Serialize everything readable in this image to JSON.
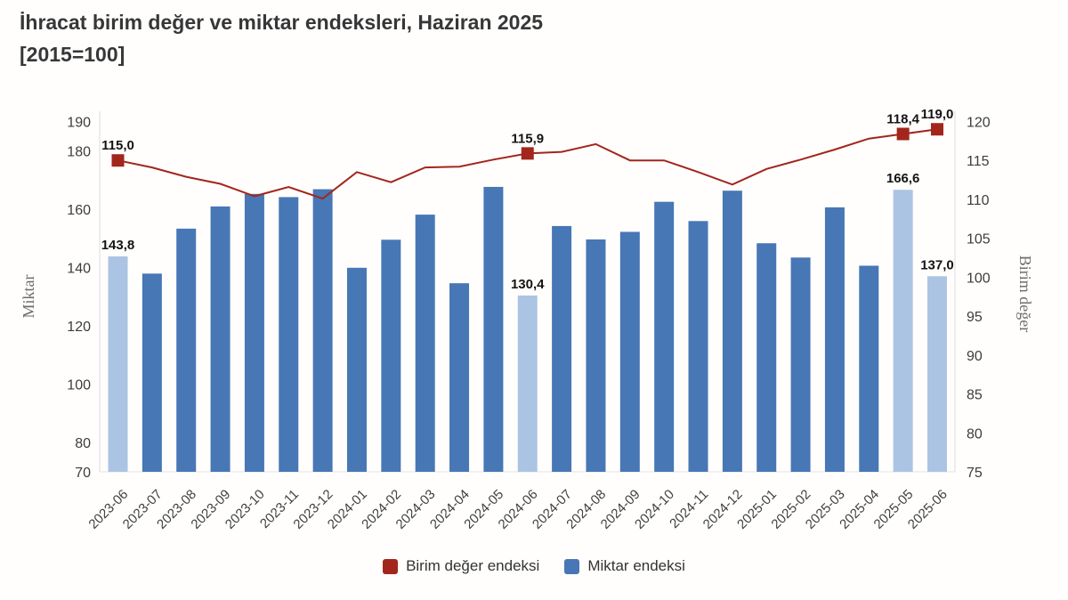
{
  "title": {
    "line1": "İhracat birim değer ve miktar endeksleri, Haziran 2025",
    "line2": "[2015=100]"
  },
  "chart_data": {
    "type": "bar",
    "subtype": "bar+line dual axis",
    "categories": [
      "2023-06",
      "2023-07",
      "2023-08",
      "2023-09",
      "2023-10",
      "2023-11",
      "2023-12",
      "2024-01",
      "2024-02",
      "2024-03",
      "2024-04",
      "2024-05",
      "2024-06",
      "2024-07",
      "2024-08",
      "2024-09",
      "2024-10",
      "2024-11",
      "2024-12",
      "2025-01",
      "2025-02",
      "2025-03",
      "2025-04",
      "2025-05",
      "2025-06"
    ],
    "series": [
      {
        "name": "Birim değer endeksi",
        "type": "line",
        "axis": "right",
        "color": "#a2261c",
        "values": [
          115.0,
          114.1,
          112.9,
          112.0,
          110.4,
          111.6,
          110.1,
          113.5,
          112.2,
          114.1,
          114.2,
          115.1,
          115.9,
          116.1,
          117.1,
          115.0,
          115.0,
          113.5,
          111.9,
          113.9,
          115.1,
          116.4,
          117.8,
          118.4,
          119.0
        ],
        "point_labels": [
          {
            "index": 0,
            "text": "115,0"
          },
          {
            "index": 12,
            "text": "115,9"
          },
          {
            "index": 23,
            "text": "118,4"
          },
          {
            "index": 24,
            "text": "119,0"
          }
        ]
      },
      {
        "name": "Miktar endeksi",
        "type": "bar",
        "axis": "left",
        "color": "#4777b5",
        "highlight_color": "#acc4e3",
        "highlight_indices": [
          0,
          12,
          23,
          24
        ],
        "values": [
          143.8,
          137.9,
          153.3,
          160.9,
          165.2,
          164.1,
          166.8,
          139.9,
          149.5,
          158.1,
          134.6,
          167.6,
          130.4,
          154.2,
          149.6,
          152.2,
          162.5,
          155.9,
          166.3,
          148.3,
          143.4,
          160.6,
          140.6,
          166.6,
          137.0
        ],
        "point_labels": [
          {
            "index": 0,
            "text": "143,8"
          },
          {
            "index": 12,
            "text": "130,4"
          },
          {
            "index": 23,
            "text": "166,6"
          },
          {
            "index": 24,
            "text": "137,0"
          }
        ]
      }
    ],
    "left_axis": {
      "title": "Miktar",
      "min": 70,
      "max": 190,
      "ticks": [
        190,
        180,
        160,
        140,
        120,
        100,
        80,
        70
      ]
    },
    "right_axis": {
      "title": "Birim değer",
      "min": 75,
      "max": 120,
      "ticks": [
        120,
        115,
        110,
        105,
        100,
        95,
        90,
        85,
        80,
        75
      ]
    },
    "grid": "off",
    "legend_position": "bottom"
  },
  "legend": {
    "item1": "Birim değer endeksi",
    "item2": "Miktar endeksi"
  }
}
